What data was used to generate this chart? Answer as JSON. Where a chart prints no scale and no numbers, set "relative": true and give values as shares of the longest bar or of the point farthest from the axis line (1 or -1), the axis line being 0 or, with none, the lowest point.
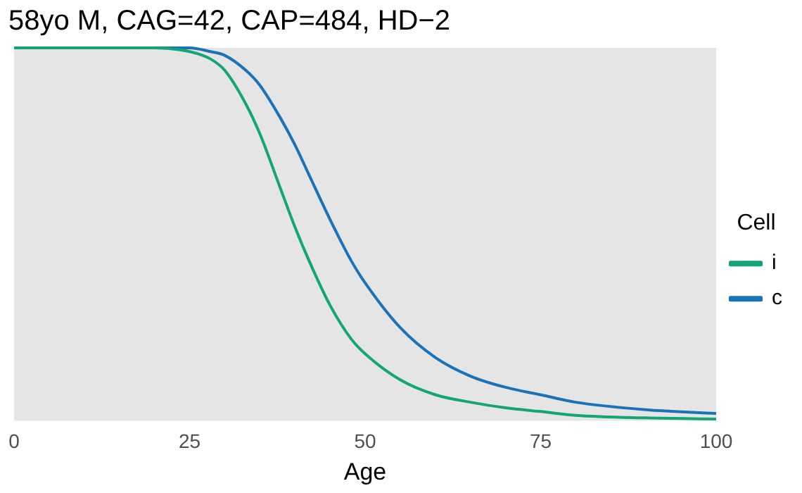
{
  "chart_data": {
    "type": "line",
    "title": "58yo M, CAG=42, CAP=484, HD−2",
    "xlabel": "Age",
    "legend_title": "Cell",
    "relative": true,
    "xlim": [
      0,
      100
    ],
    "xticks": [
      0,
      25,
      50,
      75,
      100
    ],
    "tick_labels": "x",
    "grid": false,
    "legend": "right",
    "marker": "none",
    "line_style": "solid",
    "x": [
      0,
      10,
      20,
      25,
      28,
      30,
      33,
      35,
      38,
      40,
      42,
      45,
      48,
      50,
      55,
      60,
      65,
      70,
      75,
      80,
      90,
      100
    ],
    "series": [
      {
        "name": "i",
        "color": "#13a47a",
        "values": [
          1,
          1,
          1,
          0.99,
          0.97,
          0.94,
          0.85,
          0.77,
          0.62,
          0.52,
          0.43,
          0.31,
          0.22,
          0.18,
          0.11,
          0.07,
          0.05,
          0.035,
          0.025,
          0.015,
          0.008,
          0.005
        ]
      },
      {
        "name": "c",
        "color": "#1a72b8",
        "values": [
          1,
          1,
          1,
          1,
          0.99,
          0.98,
          0.94,
          0.9,
          0.81,
          0.74,
          0.66,
          0.54,
          0.43,
          0.37,
          0.25,
          0.17,
          0.12,
          0.09,
          0.07,
          0.05,
          0.03,
          0.02
        ]
      }
    ]
  }
}
